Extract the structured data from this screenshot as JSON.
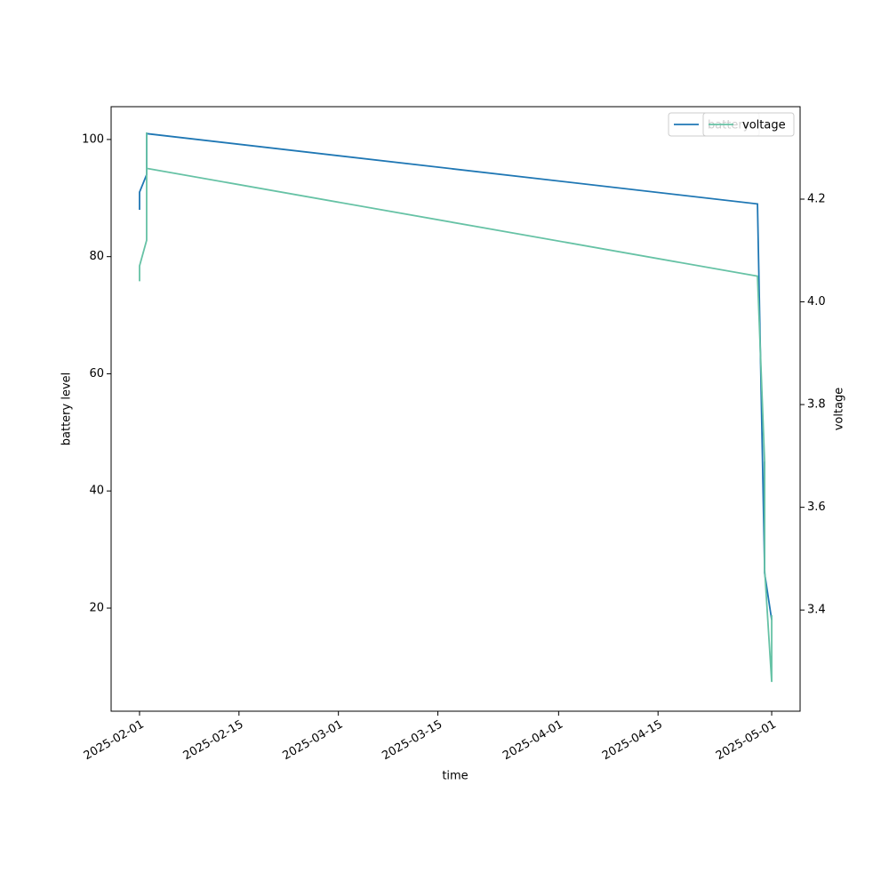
{
  "chart_data": {
    "type": "line",
    "x_label": "time",
    "y_label": "battery level",
    "y2_label": "voltage",
    "xlim": [
      "2025-01-28",
      "2025-05-05"
    ],
    "xticks": [
      "2025-02-01",
      "2025-02-15",
      "2025-03-01",
      "2025-03-15",
      "2025-04-01",
      "2025-04-15",
      "2025-05-01"
    ],
    "ylim": [
      2.4,
      105.6
    ],
    "yticks": [
      20,
      40,
      60,
      80,
      100
    ],
    "y2lim": [
      3.203,
      4.38
    ],
    "y2ticks": [
      3.4,
      3.6,
      3.8,
      {
        "value": 4,
        "label": "4.0"
      },
      4.2
    ],
    "legend": "upper right",
    "series": [
      {
        "name": "battery",
        "color": "#1f77b4",
        "x": [
          "2025-02-01",
          "2025-02-01",
          "2025-02-02",
          "2025-02-02",
          "2025-02-02",
          "2025-04-29",
          "2025-04-30",
          "2025-04-30",
          "2025-04-30",
          "2025-05-01"
        ],
        "values": [
          88,
          91,
          94,
          101,
          101,
          89,
          27,
          45,
          26,
          18
        ]
      },
      {
        "name": "voltage",
        "color": "#66c2a5",
        "axis": "y2",
        "x": [
          "2025-02-01",
          "2025-02-01",
          "2025-02-02",
          "2025-02-02",
          "2025-02-02",
          "2025-02-02",
          "2025-04-29",
          "2025-04-30",
          "2025-04-30",
          "2025-04-30",
          "2025-04-30",
          "2025-05-01",
          "2025-05-01"
        ],
        "values": [
          4.04,
          4.07,
          4.12,
          4.33,
          4.27,
          4.26,
          4.05,
          3.69,
          3.53,
          3.62,
          3.48,
          3.26,
          3.39
        ]
      }
    ]
  }
}
